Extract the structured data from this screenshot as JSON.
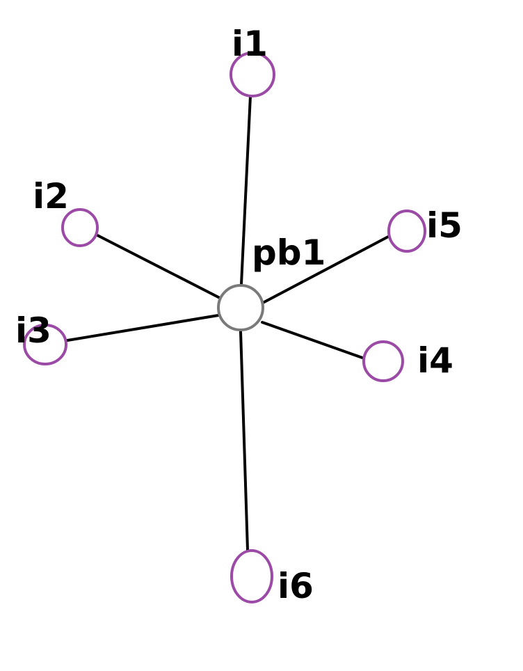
{
  "diagram": {
    "hub": {
      "id": "pb1",
      "label": "pb1",
      "color": "#7a7a7a"
    },
    "leaves": [
      {
        "id": "i1",
        "label": "i1"
      },
      {
        "id": "i2",
        "label": "i2"
      },
      {
        "id": "i3",
        "label": "i3"
      },
      {
        "id": "i4",
        "label": "i4"
      },
      {
        "id": "i5",
        "label": "i5"
      },
      {
        "id": "i6",
        "label": "i6"
      }
    ],
    "edges": [
      {
        "from": "pb1",
        "to": "i1"
      },
      {
        "from": "pb1",
        "to": "i2"
      },
      {
        "from": "pb1",
        "to": "i3"
      },
      {
        "from": "pb1",
        "to": "i4"
      },
      {
        "from": "pb1",
        "to": "i5"
      },
      {
        "from": "pb1",
        "to": "i6"
      }
    ],
    "leaf_color": "#9b4aa6",
    "edge_color": "#000000"
  }
}
